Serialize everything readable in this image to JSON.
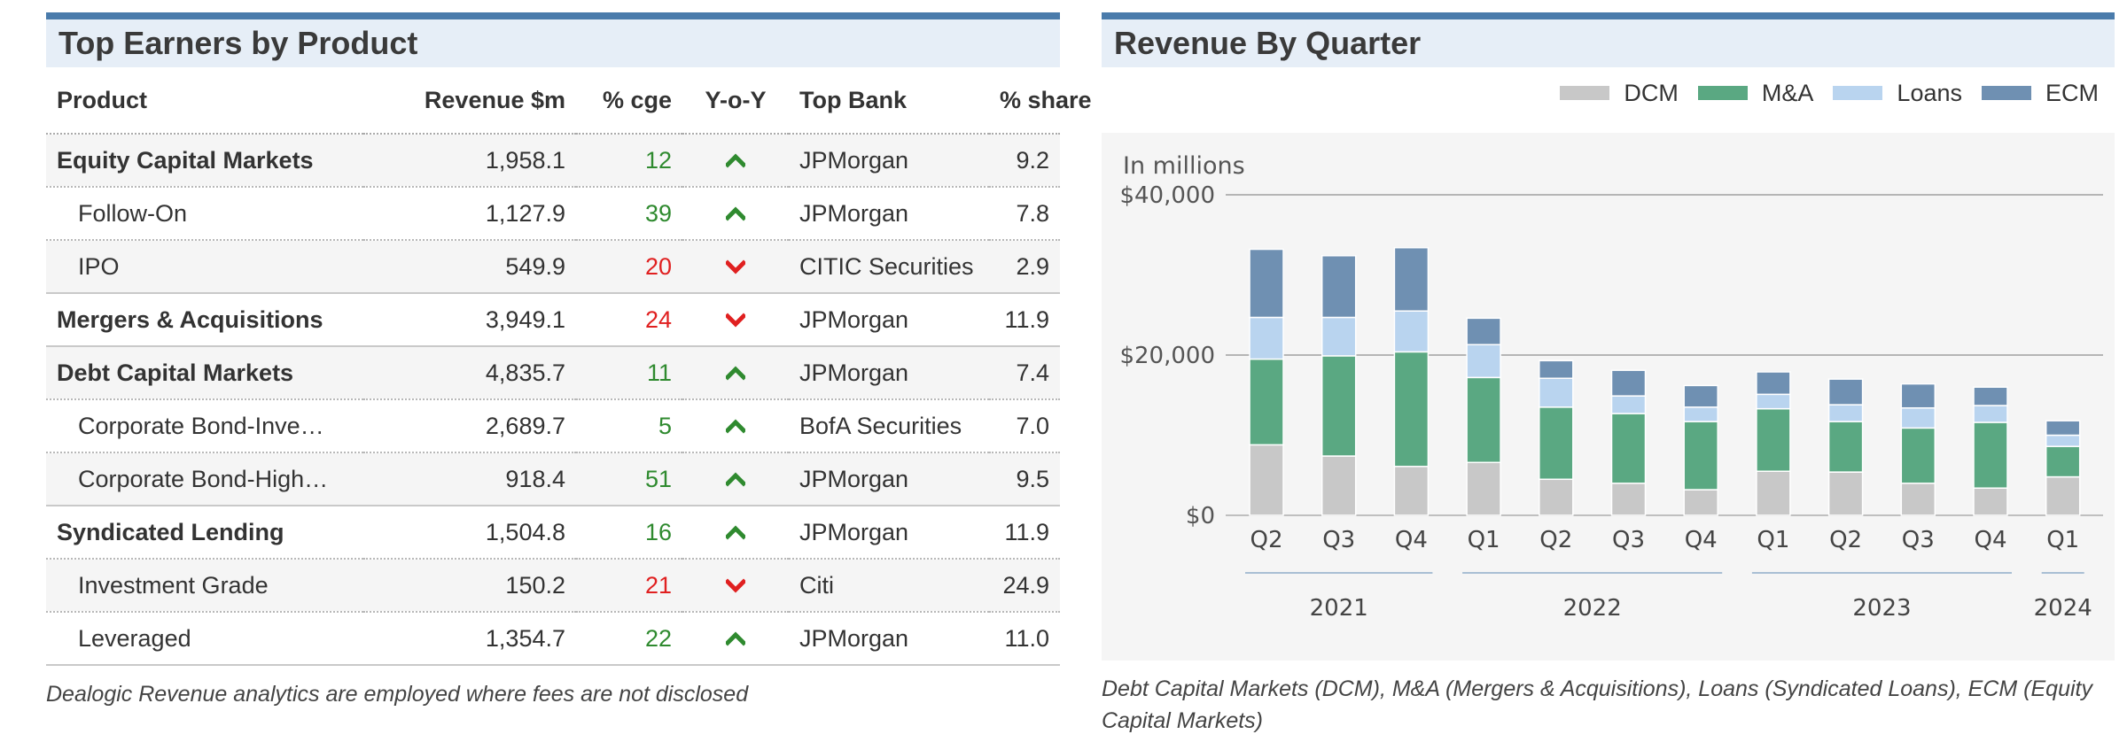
{
  "earners": {
    "title": "Top Earners by Product",
    "columns": {
      "product": "Product",
      "revenue": "Revenue $m",
      "cge": "% cge",
      "yoy": "Y-o-Y",
      "bank": "Top Bank",
      "share": "% share"
    },
    "rows": [
      {
        "product": "Equity Capital Markets",
        "revenue": "1,958.1",
        "cge": "12",
        "trend": "up",
        "bank": "JPMorgan",
        "share": "9.2",
        "level": "parent"
      },
      {
        "product": "Follow-On",
        "revenue": "1,127.9",
        "cge": "39",
        "trend": "up",
        "bank": "JPMorgan",
        "share": "7.8",
        "level": "child"
      },
      {
        "product": "IPO",
        "revenue": "549.9",
        "cge": "20",
        "trend": "down",
        "bank": "CITIC Securities",
        "share": "2.9",
        "level": "child"
      },
      {
        "product": "Mergers & Acquisitions",
        "revenue": "3,949.1",
        "cge": "24",
        "trend": "down",
        "bank": "JPMorgan",
        "share": "11.9",
        "level": "parent"
      },
      {
        "product": "Debt Capital Markets",
        "revenue": "4,835.7",
        "cge": "11",
        "trend": "up",
        "bank": "JPMorgan",
        "share": "7.4",
        "level": "parent"
      },
      {
        "product": "Corporate Bond-Inve…",
        "revenue": "2,689.7",
        "cge": "5",
        "trend": "up",
        "bank": "BofA Securities",
        "share": "7.0",
        "level": "child"
      },
      {
        "product": "Corporate Bond-High…",
        "revenue": "918.4",
        "cge": "51",
        "trend": "up",
        "bank": "JPMorgan",
        "share": "9.5",
        "level": "child"
      },
      {
        "product": "Syndicated Lending",
        "revenue": "1,504.8",
        "cge": "16",
        "trend": "up",
        "bank": "JPMorgan",
        "share": "11.9",
        "level": "parent"
      },
      {
        "product": "Investment Grade",
        "revenue": "150.2",
        "cge": "21",
        "trend": "down",
        "bank": "Citi",
        "share": "24.9",
        "level": "child"
      },
      {
        "product": "Leveraged",
        "revenue": "1,354.7",
        "cge": "22",
        "trend": "up",
        "bank": "JPMorgan",
        "share": "11.0",
        "level": "child"
      }
    ],
    "footnote": "Dealogic Revenue analytics are employed where fees are not disclosed"
  },
  "revenue_chart": {
    "title": "Revenue By Quarter",
    "footnote": "Debt Capital Markets (DCM), M&A (Mergers & Acquisitions), Loans (Syndicated Loans), ECM (Equity Capital Markets)"
  },
  "colors": {
    "DCM": "#c8c8c8",
    "M&A": "#5aa882",
    "Loans": "#b9d4ef",
    "ECM": "#6f90b2",
    "up": "#2f8a2f",
    "down": "#e02020",
    "header_bar": "#4a7bab"
  },
  "chart_data": {
    "type": "bar",
    "stacked": true,
    "ylabel": "In millions",
    "ylim": [
      0,
      40000
    ],
    "yticks": [
      0,
      20000,
      40000
    ],
    "ytick_labels": [
      "$0",
      "$20,000",
      "$40,000"
    ],
    "categories": [
      "Q2",
      "Q3",
      "Q4",
      "Q1",
      "Q2",
      "Q3",
      "Q4",
      "Q1",
      "Q2",
      "Q3",
      "Q4",
      "Q1"
    ],
    "year_groups": [
      {
        "label": "2021",
        "start": 0,
        "end": 2
      },
      {
        "label": "2022",
        "start": 3,
        "end": 6
      },
      {
        "label": "2023",
        "start": 7,
        "end": 10
      },
      {
        "label": "2024",
        "start": 11,
        "end": 11
      }
    ],
    "legend_position": "top-right",
    "grid": true,
    "series": [
      {
        "name": "DCM",
        "values": [
          8800,
          7400,
          6100,
          6600,
          4500,
          4000,
          3200,
          5500,
          5400,
          4000,
          3400,
          4800
        ]
      },
      {
        "name": "M&A",
        "values": [
          10700,
          12500,
          14300,
          10600,
          9000,
          8700,
          8500,
          7800,
          6300,
          6900,
          8200,
          3800
        ]
      },
      {
        "name": "Loans",
        "values": [
          5200,
          4800,
          5100,
          4100,
          3600,
          2200,
          1800,
          1800,
          2100,
          2500,
          2100,
          1400
        ]
      },
      {
        "name": "ECM",
        "values": [
          8500,
          7700,
          7900,
          3300,
          2200,
          3200,
          2700,
          2800,
          3200,
          3000,
          2300,
          1800
        ]
      }
    ]
  }
}
